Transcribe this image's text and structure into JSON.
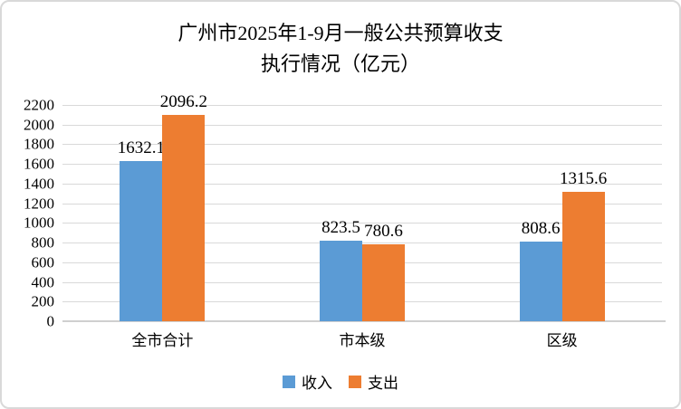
{
  "title_line1": "广州市2025年1-9月一般公共预算收支",
  "title_line2": "执行情况（亿元）",
  "colors": {
    "income": "#5B9BD5",
    "expense": "#ED7D31",
    "gridline": "#D9D9D9",
    "axis": "#CFCFCF",
    "text": "#000000",
    "frame_border": "#D9D9D9"
  },
  "chart_data": {
    "type": "bar",
    "title": "广州市2025年1-9月一般公共预算收支执行情况（亿元）",
    "categories": [
      "全市合计",
      "市本级",
      "区级"
    ],
    "series": [
      {
        "name": "收入",
        "color": "#5B9BD5",
        "values": [
          1632.1,
          823.5,
          808.6
        ]
      },
      {
        "name": "支出",
        "color": "#ED7D31",
        "values": [
          2096.2,
          780.6,
          1315.6
        ]
      }
    ],
    "data_labels": [
      [
        "1632.1",
        "823.5",
        "808.6"
      ],
      [
        "2096.2",
        "780.6",
        "1315.6"
      ]
    ],
    "ylim": [
      0,
      2200
    ],
    "ytick_step": 200,
    "yticks": [
      "0",
      "200",
      "400",
      "600",
      "800",
      "1000",
      "1200",
      "1400",
      "1600",
      "1800",
      "2000",
      "2200"
    ],
    "grid": true,
    "legend_position": "bottom",
    "unit": "亿元"
  },
  "legend": {
    "items": [
      {
        "label": "收入",
        "color": "#5B9BD5"
      },
      {
        "label": "支出",
        "color": "#ED7D31"
      }
    ]
  }
}
